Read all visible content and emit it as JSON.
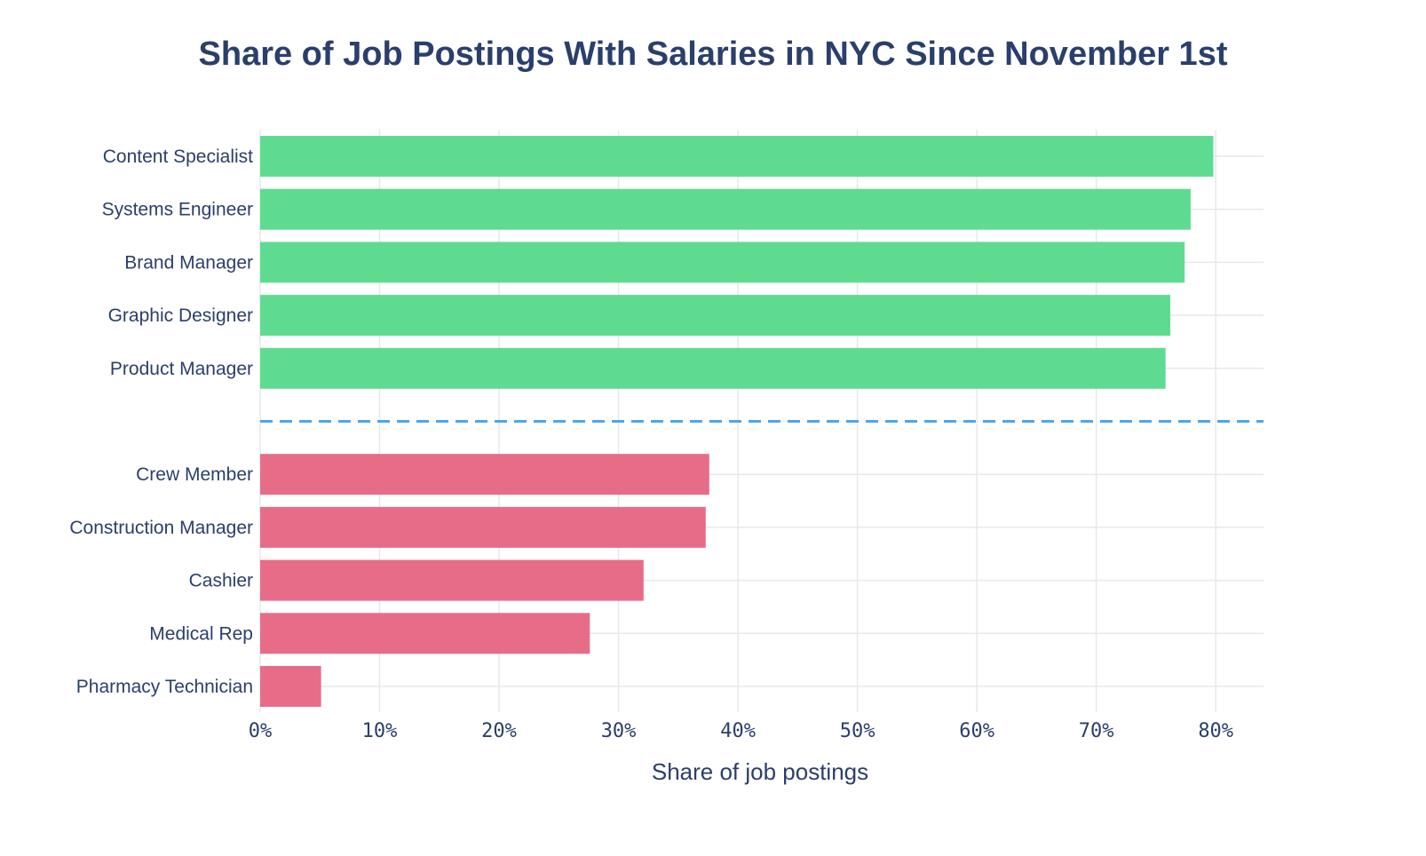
{
  "chart_data": {
    "type": "bar",
    "orientation": "horizontal",
    "title": "Share of Job Postings With Salaries in NYC Since November 1st",
    "xlabel": "Share of job postings",
    "ylabel": "",
    "xlim": [
      0,
      84
    ],
    "xticks": [
      0,
      10,
      20,
      30,
      40,
      50,
      60,
      70,
      80
    ],
    "xtick_labels": [
      "0%",
      "10%",
      "20%",
      "30%",
      "40%",
      "50%",
      "60%",
      "70%",
      "80%"
    ],
    "grid": true,
    "separator": "dashed line between top and bottom groups",
    "series": [
      {
        "name": "Top",
        "color": "#5fdb91",
        "categories": [
          "Content Specialist",
          "Systems Engineer",
          "Brand Manager",
          "Graphic Designer",
          "Product Manager"
        ],
        "values": [
          79.8,
          77.9,
          77.4,
          76.2,
          75.8
        ]
      },
      {
        "name": "Bottom",
        "color": "#e76c88",
        "categories": [
          "Crew Member",
          "Construction Manager",
          "Cashier",
          "Medical Rep",
          "Pharmacy Technician"
        ],
        "values": [
          37.6,
          37.3,
          32.1,
          27.6,
          5.1
        ]
      }
    ],
    "separator_color": "#4aa8ee",
    "grid_color": "#e6e8ec",
    "text_color": "#2a3f6b"
  }
}
